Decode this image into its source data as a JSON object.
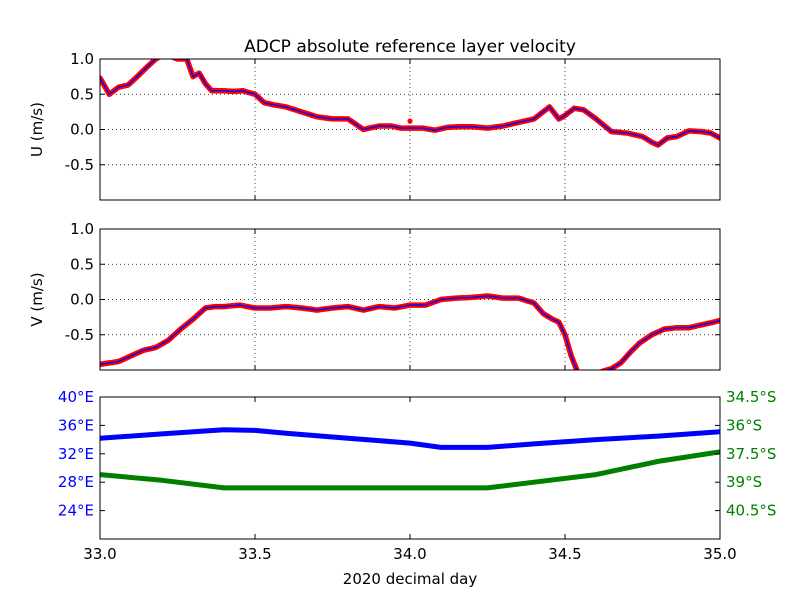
{
  "figure": {
    "title": "ADCP absolute reference layer velocity",
    "xlabel": "2020 decimal day"
  },
  "colors": {
    "line": "#0000ff",
    "marker": "#ff0000",
    "lon": "#0000ff",
    "lat": "#008000",
    "grid": "#000000",
    "frame": "#000000"
  },
  "chart_data": [
    {
      "id": "u",
      "type": "line",
      "ylabel": "U (m/s)",
      "xlim": [
        33.0,
        35.0
      ],
      "ylim": [
        -1.0,
        1.0
      ],
      "xticks": [
        33.0,
        33.5,
        34.0,
        34.5,
        35.0
      ],
      "yticks": [
        0.5,
        0.0,
        -0.5
      ],
      "ytick_labels": [
        "0.5",
        "0.0",
        "-0.5"
      ],
      "top_label": "1.0",
      "grid": true,
      "series": [
        {
          "x": [
            33.0,
            33.03,
            33.06,
            33.09,
            33.12,
            33.15,
            33.18,
            33.2,
            33.22,
            33.25,
            33.28,
            33.3,
            33.32,
            33.34,
            33.36,
            33.38,
            33.4,
            33.43,
            33.46,
            33.5,
            33.53,
            33.56,
            33.6,
            33.65,
            33.7,
            33.75,
            33.8,
            33.85,
            33.9,
            33.94,
            33.97,
            34.0,
            34.04,
            34.08,
            34.12,
            34.16,
            34.2,
            34.25,
            34.3,
            34.35,
            34.4,
            34.45,
            34.48,
            34.5,
            34.53,
            34.56,
            34.6,
            34.65,
            34.7,
            34.75,
            34.78,
            34.8,
            34.83,
            34.86,
            34.9,
            34.94,
            34.97,
            35.0
          ],
          "y": [
            0.73,
            0.5,
            0.6,
            0.63,
            0.75,
            0.88,
            1.0,
            1.05,
            1.05,
            1.0,
            1.0,
            0.75,
            0.8,
            0.65,
            0.55,
            0.55,
            0.55,
            0.54,
            0.55,
            0.5,
            0.38,
            0.35,
            0.32,
            0.25,
            0.18,
            0.15,
            0.15,
            0.0,
            0.05,
            0.05,
            0.02,
            0.02,
            0.02,
            -0.01,
            0.03,
            0.04,
            0.04,
            0.02,
            0.05,
            0.1,
            0.15,
            0.32,
            0.15,
            0.2,
            0.3,
            0.28,
            0.15,
            -0.03,
            -0.05,
            -0.1,
            -0.18,
            -0.22,
            -0.12,
            -0.1,
            -0.02,
            -0.03,
            -0.05,
            -0.12
          ]
        }
      ],
      "outliers": [
        {
          "x": 34.0,
          "y": 0.12
        }
      ]
    },
    {
      "id": "v",
      "type": "line",
      "ylabel": "V (m/s)",
      "xlim": [
        33.0,
        35.0
      ],
      "ylim": [
        -1.0,
        1.0
      ],
      "xticks": [
        33.0,
        33.5,
        34.0,
        34.5,
        35.0
      ],
      "yticks": [
        0.5,
        0.0,
        -0.5
      ],
      "ytick_labels": [
        "0.5",
        "0.0",
        "-0.5"
      ],
      "top_label": "1.0",
      "grid": true,
      "series": [
        {
          "x": [
            33.0,
            33.03,
            33.06,
            33.1,
            33.14,
            33.18,
            33.22,
            33.26,
            33.3,
            33.34,
            33.37,
            33.4,
            33.45,
            33.5,
            33.55,
            33.6,
            33.65,
            33.7,
            33.75,
            33.8,
            33.85,
            33.9,
            33.95,
            34.0,
            34.05,
            34.1,
            34.15,
            34.2,
            34.25,
            34.3,
            34.35,
            34.4,
            34.43,
            34.46,
            34.48,
            34.5,
            34.52,
            34.54,
            34.55
          ],
          "y": [
            -0.92,
            -0.9,
            -0.88,
            -0.8,
            -0.72,
            -0.68,
            -0.58,
            -0.42,
            -0.28,
            -0.12,
            -0.1,
            -0.1,
            -0.08,
            -0.12,
            -0.12,
            -0.1,
            -0.12,
            -0.15,
            -0.12,
            -0.1,
            -0.15,
            -0.1,
            -0.12,
            -0.08,
            -0.08,
            0.0,
            0.02,
            0.03,
            0.05,
            0.02,
            0.02,
            -0.05,
            -0.2,
            -0.28,
            -0.32,
            -0.5,
            -0.8,
            -1.02,
            -1.1
          ]
        },
        {
          "x": [
            34.62,
            34.65,
            34.68,
            34.71,
            34.74,
            34.78,
            34.82,
            34.86,
            34.9,
            34.95,
            35.0
          ],
          "y": [
            -1.02,
            -0.98,
            -0.9,
            -0.75,
            -0.62,
            -0.5,
            -0.42,
            -0.4,
            -0.4,
            -0.35,
            -0.3
          ]
        }
      ],
      "outliers": []
    },
    {
      "id": "pos",
      "type": "line",
      "xlim": [
        33.0,
        35.0
      ],
      "xticks": [
        33.0,
        33.5,
        34.0,
        34.5,
        35.0
      ],
      "xtick_labels": [
        "33.0",
        "33.5",
        "34.0",
        "34.5",
        "35.0"
      ],
      "grid": false,
      "lon_axis": {
        "ylim": [
          20.0,
          40.0
        ],
        "ticks": [
          40,
          36,
          32,
          28,
          24
        ],
        "tick_labels": [
          "40°E",
          "36°E",
          "32°E",
          "28°E",
          "24°E"
        ]
      },
      "lat_axis": {
        "ylim": [
          -42.0,
          -34.5
        ],
        "ticks": [
          -34.5,
          -36.0,
          -37.5,
          -39.0,
          -40.5
        ],
        "tick_labels": [
          "34.5°S",
          "36°S",
          "37.5°S",
          "39°S",
          "40.5°S"
        ]
      },
      "series": [
        {
          "axis": "lon",
          "x": [
            33.0,
            33.2,
            33.4,
            33.5,
            33.6,
            33.8,
            34.0,
            34.1,
            34.25,
            34.4,
            34.6,
            34.8,
            35.0
          ],
          "y": [
            34.2,
            34.8,
            35.4,
            35.3,
            34.9,
            34.2,
            33.5,
            32.9,
            32.9,
            33.4,
            34.0,
            34.5,
            35.1
          ]
        },
        {
          "axis": "lat",
          "x": [
            33.0,
            33.2,
            33.4,
            33.5,
            33.8,
            34.0,
            34.25,
            34.4,
            34.6,
            34.8,
            35.0
          ],
          "y": [
            -38.6,
            -38.9,
            -39.3,
            -39.3,
            -39.3,
            -39.3,
            -39.3,
            -39.0,
            -38.6,
            -37.9,
            -37.4
          ]
        }
      ]
    }
  ]
}
